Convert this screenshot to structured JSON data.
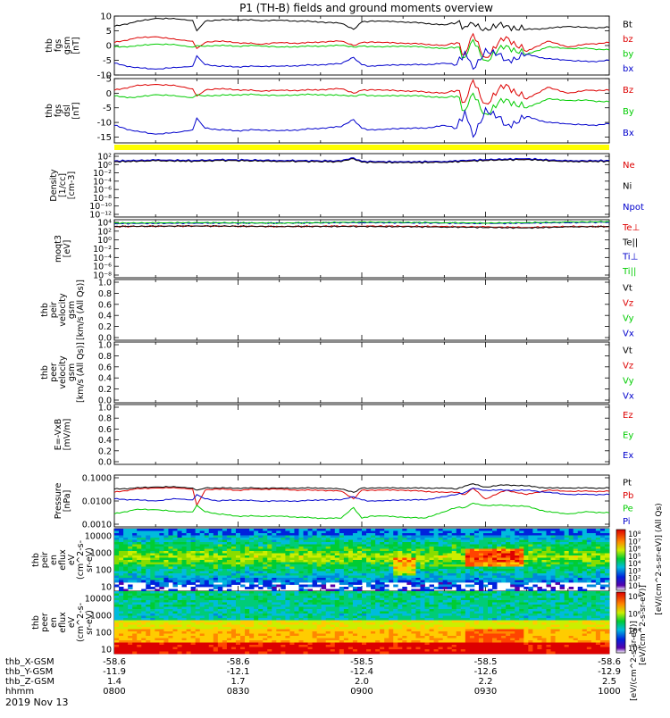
{
  "title": "P1 (TH-B) fields and ground moments overview",
  "date_label": "2019 Nov 13",
  "time_axis": {
    "row_labels": [
      "thb_X-GSM",
      "thb_Y-GSM",
      "thb_Z-GSM",
      "hhmm"
    ],
    "columns": [
      {
        "x": "-58.6",
        "y": "-11.9",
        "z": "1.4",
        "t": "0800"
      },
      {
        "x": "-58.6",
        "y": "-12.1",
        "z": "1.7",
        "t": "0830"
      },
      {
        "x": "-58.5",
        "y": "-12.4",
        "z": "2.0",
        "t": "0900"
      },
      {
        "x": "-58.5",
        "y": "-12.6",
        "z": "2.2",
        "t": "0930"
      },
      {
        "x": "-58.6",
        "y": "-12.9",
        "z": "2.5",
        "t": "1000"
      }
    ]
  },
  "colors": {
    "black": "#000000",
    "red": "#dd0000",
    "green": "#00cc00",
    "blue": "#0000cc",
    "yellow": "#ffff00"
  },
  "colorbar_labels": {
    "ion": "[eV/(cm^2-s-sr-eV)] (All Qs)",
    "electron": "[eV/(cm^2-s-sr-eV)]",
    "bottom": "[eV/(cm^2-s-sr-eV)]"
  },
  "chart_data": [
    {
      "type": "line",
      "name": "fgs-gsm",
      "ylabel": [
        "thb",
        "fgs",
        "gsm",
        "[nT]"
      ],
      "ylim": [
        -10,
        10
      ],
      "yticks": [
        10,
        5,
        0,
        -5,
        -10
      ],
      "legend": [
        {
          "label": "Bt",
          "color": "#000000"
        },
        {
          "label": "bz",
          "color": "#dd0000"
        },
        {
          "label": "by",
          "color": "#00cc00"
        },
        {
          "label": "bx",
          "color": "#0000cc"
        }
      ],
      "x": [
        0,
        5,
        10,
        15,
        19,
        20,
        22,
        25,
        30,
        35,
        40,
        45,
        50,
        55,
        58,
        60,
        62,
        65,
        70,
        75,
        80,
        83,
        85,
        87,
        90,
        95,
        100,
        105,
        110,
        115,
        120
      ],
      "series": [
        {
          "name": "Bt",
          "color": "#000000",
          "values": [
            6.5,
            8.0,
            9.2,
            9.0,
            8.5,
            5.0,
            8.2,
            8.6,
            8.8,
            8.5,
            8.6,
            8.3,
            8.0,
            7.5,
            5.5,
            8.0,
            8.3,
            8.2,
            8.0,
            7.6,
            7.0,
            7.8,
            6.5,
            7.5,
            6.0,
            6.8,
            5.5,
            5.8,
            6.5,
            6.0,
            6.2
          ]
        },
        {
          "name": "bz",
          "color": "#dd0000",
          "values": [
            1.0,
            2.5,
            3.0,
            2.0,
            1.5,
            -1.0,
            1.0,
            1.5,
            1.0,
            0.5,
            1.0,
            0.8,
            1.2,
            1.5,
            0.0,
            1.0,
            1.2,
            1.0,
            0.8,
            0.5,
            0.0,
            1.0,
            -3.0,
            4.0,
            -4.0,
            3.0,
            -2.0,
            1.5,
            -0.5,
            0.5,
            1.0
          ]
        },
        {
          "name": "by",
          "color": "#00cc00",
          "values": [
            -0.5,
            -0.2,
            0.5,
            0.2,
            -0.5,
            0.0,
            -0.3,
            0.0,
            -0.2,
            0.0,
            -0.5,
            -0.3,
            -0.2,
            0.0,
            -0.5,
            -0.2,
            -0.3,
            -0.5,
            -0.2,
            -0.5,
            -1.0,
            -0.5,
            -4.0,
            2.0,
            -5.0,
            0.0,
            -3.0,
            -0.5,
            -1.0,
            -1.0,
            -1.5
          ]
        },
        {
          "name": "bx",
          "color": "#0000cc",
          "values": [
            -6.0,
            -7.5,
            -8.0,
            -7.5,
            -7.0,
            -3.5,
            -6.5,
            -7.0,
            -7.2,
            -7.0,
            -7.0,
            -6.8,
            -6.5,
            -6.2,
            -4.0,
            -6.5,
            -7.0,
            -6.8,
            -6.5,
            -6.5,
            -6.0,
            -6.5,
            -2.0,
            -8.0,
            -1.0,
            -5.0,
            -3.0,
            -4.5,
            -5.0,
            -5.5,
            -5.0
          ]
        }
      ]
    },
    {
      "type": "line",
      "name": "fgs-dsl",
      "ylabel": [
        "thb",
        "fgs",
        "dsl",
        "[nT]"
      ],
      "ylim": [
        -17,
        5
      ],
      "yticks": [
        5,
        0,
        -5,
        -10,
        -15
      ],
      "legend": [
        {
          "label": "Bz",
          "color": "#dd0000"
        },
        {
          "label": "By",
          "color": "#00cc00"
        },
        {
          "label": "Bx",
          "color": "#0000cc"
        }
      ],
      "x": [
        0,
        5,
        10,
        15,
        19,
        20,
        22,
        25,
        30,
        35,
        40,
        45,
        50,
        55,
        58,
        60,
        62,
        65,
        70,
        75,
        80,
        83,
        85,
        87,
        90,
        95,
        100,
        105,
        110,
        115,
        120
      ],
      "series": [
        {
          "name": "Bz",
          "color": "#dd0000",
          "values": [
            1.0,
            2.5,
            3.0,
            2.5,
            1.5,
            -1.0,
            1.0,
            1.5,
            1.2,
            0.8,
            1.0,
            1.0,
            1.2,
            1.5,
            0.0,
            1.0,
            1.2,
            1.0,
            0.8,
            0.5,
            0.0,
            1.0,
            -3.0,
            4.5,
            -3.5,
            3.0,
            -2.0,
            2.0,
            0.0,
            1.0,
            1.0
          ]
        },
        {
          "name": "By",
          "color": "#00cc00",
          "values": [
            -1.0,
            -1.5,
            -0.5,
            -1.0,
            -1.5,
            -0.5,
            -1.0,
            -0.8,
            -0.5,
            -0.5,
            -0.8,
            -0.5,
            -0.5,
            -0.8,
            -1.0,
            -0.5,
            -0.8,
            -1.0,
            -0.8,
            -1.0,
            -1.5,
            -1.0,
            -6.0,
            0.0,
            -7.0,
            -2.0,
            -5.0,
            -2.0,
            -2.5,
            -2.5,
            -3.0
          ]
        },
        {
          "name": "Bx",
          "color": "#0000cc",
          "values": [
            -11.0,
            -13.0,
            -14.0,
            -13.5,
            -12.5,
            -8.5,
            -12.0,
            -12.5,
            -12.8,
            -12.5,
            -12.8,
            -12.5,
            -12.0,
            -11.5,
            -9.0,
            -12.0,
            -12.5,
            -12.5,
            -12.0,
            -12.0,
            -11.0,
            -12.0,
            -6.0,
            -15.0,
            -5.0,
            -11.0,
            -8.0,
            -10.0,
            -10.5,
            -11.0,
            -10.5
          ]
        }
      ]
    },
    {
      "type": "line",
      "name": "density",
      "ylabel": [
        "Density",
        "[1/cc]",
        "[cm-3]"
      ],
      "ylim": [
        -12,
        2
      ],
      "ylog": true,
      "yticks": [
        "10²",
        "10⁰",
        "10⁻²",
        "10⁻⁴",
        "10⁻⁶",
        "10⁻⁸",
        "10⁻¹⁰",
        "10⁻¹²"
      ],
      "legend": [
        {
          "label": "Ne",
          "color": "#dd0000"
        },
        {
          "label": "Ni",
          "color": "#000000"
        },
        {
          "label": "Npot",
          "color": "#0000cc"
        }
      ],
      "x": [
        0,
        10,
        20,
        25,
        40,
        55,
        58,
        60,
        70,
        80,
        90,
        100,
        110,
        120
      ],
      "series": [
        {
          "name": "Ne",
          "color": "#dd0000",
          "values": [
            0.3,
            0.5,
            0.4,
            0.6,
            0.4,
            0.3,
            1.0,
            0.2,
            0.1,
            0.2,
            0.6,
            0.8,
            0.3,
            0.4
          ]
        },
        {
          "name": "Ni",
          "color": "#000000",
          "values": [
            0.2,
            0.4,
            0.3,
            0.5,
            0.3,
            0.2,
            0.9,
            0.1,
            0.0,
            0.1,
            0.5,
            0.7,
            0.2,
            0.3
          ]
        },
        {
          "name": "Npot",
          "color": "#0000cc",
          "values": [
            0.4,
            0.6,
            0.5,
            0.7,
            0.5,
            0.4,
            1.1,
            0.3,
            0.2,
            0.3,
            0.7,
            0.9,
            0.4,
            0.5
          ]
        }
      ]
    },
    {
      "type": "line",
      "name": "temperature",
      "ylabel": [
        "moqt3",
        "[eV]"
      ],
      "ylim": [
        -8,
        4
      ],
      "ylog": true,
      "yticks": [
        "10⁴",
        "10²",
        "10⁰",
        "10⁻²",
        "10⁻⁴",
        "10⁻⁶",
        "10⁻⁸"
      ],
      "legend": [
        {
          "label": "Te⊥",
          "color": "#dd0000"
        },
        {
          "label": "Te||",
          "color": "#000000"
        },
        {
          "label": "Ti⊥",
          "color": "#0000cc"
        },
        {
          "label": "Ti||",
          "color": "#00cc00"
        }
      ],
      "x": [
        0,
        20,
        40,
        60,
        80,
        90,
        100,
        110,
        120
      ],
      "series": [
        {
          "name": "Te⊥",
          "color": "#dd0000",
          "values": [
            2.6,
            2.7,
            2.6,
            2.7,
            2.6,
            2.5,
            2.4,
            2.6,
            2.6
          ]
        },
        {
          "name": "Te||",
          "color": "#000000",
          "values": [
            2.6,
            2.7,
            2.6,
            2.6,
            2.5,
            2.4,
            2.3,
            2.5,
            2.6
          ]
        },
        {
          "name": "Ti⊥",
          "color": "#0000cc",
          "values": [
            3.2,
            3.3,
            3.3,
            3.4,
            3.3,
            3.2,
            3.3,
            3.4,
            3.5
          ]
        },
        {
          "name": "Ti||",
          "color": "#00cc00",
          "values": [
            3.3,
            3.4,
            3.3,
            3.5,
            3.4,
            3.3,
            3.4,
            3.5,
            3.6
          ]
        }
      ]
    },
    {
      "type": "line",
      "name": "peir-velocity",
      "ylabel": [
        "thb",
        "peir",
        "velocity",
        "gsm",
        "[km/s (All Qs)]"
      ],
      "ylim": [
        0,
        1
      ],
      "yticks": [
        "1.0",
        "0.8",
        "0.6",
        "0.4",
        "0.2",
        "0.0"
      ],
      "legend": [
        {
          "label": "Vt",
          "color": "#000000"
        },
        {
          "label": "Vz",
          "color": "#dd0000"
        },
        {
          "label": "Vy",
          "color": "#00cc00"
        },
        {
          "label": "Vx",
          "color": "#0000cc"
        }
      ],
      "series": []
    },
    {
      "type": "line",
      "name": "peer-velocity",
      "ylabel": [
        "thb",
        "peer",
        "velocity",
        "gsm",
        "[km/s (All Qs)]"
      ],
      "ylim": [
        0,
        1
      ],
      "yticks": [
        "1.0",
        "0.8",
        "0.6",
        "0.4",
        "0.2",
        "0.0"
      ],
      "legend": [
        {
          "label": "Vt",
          "color": "#000000"
        },
        {
          "label": "Vz",
          "color": "#dd0000"
        },
        {
          "label": "Vy",
          "color": "#00cc00"
        },
        {
          "label": "Vx",
          "color": "#0000cc"
        }
      ],
      "series": []
    },
    {
      "type": "line",
      "name": "efield",
      "ylabel": [
        "E=-VxB",
        "[mV/m]"
      ],
      "ylim": [
        0,
        1
      ],
      "yticks": [
        "1.0",
        "0.8",
        "0.6",
        "0.4",
        "0.2",
        "0.0"
      ],
      "legend": [
        {
          "label": "Ez",
          "color": "#dd0000"
        },
        {
          "label": "Ey",
          "color": "#00cc00"
        },
        {
          "label": "Ex",
          "color": "#0000cc"
        }
      ],
      "series": []
    },
    {
      "type": "line",
      "name": "pressure",
      "ylabel": [
        "Pressure",
        "[nPa]"
      ],
      "ylim": [
        -3.3,
        -0.9
      ],
      "ylog": true,
      "yticks": [
        "0.1000",
        "0.0100",
        "0.0010"
      ],
      "legend": [
        {
          "label": "Pt",
          "color": "#000000"
        },
        {
          "label": "Pb",
          "color": "#dd0000"
        },
        {
          "label": "Pe",
          "color": "#00cc00"
        },
        {
          "label": "Pi",
          "color": "#0000cc"
        }
      ],
      "x": [
        0,
        5,
        10,
        15,
        19,
        20,
        22,
        25,
        30,
        35,
        40,
        45,
        50,
        55,
        58,
        60,
        62,
        65,
        70,
        75,
        80,
        83,
        85,
        87,
        90,
        95,
        100,
        105,
        110,
        115,
        120
      ],
      "series": [
        {
          "name": "Pt",
          "color": "#000000",
          "values": [
            -1.55,
            -1.5,
            -1.45,
            -1.45,
            -1.5,
            -1.6,
            -1.5,
            -1.5,
            -1.5,
            -1.5,
            -1.5,
            -1.5,
            -1.5,
            -1.55,
            -1.7,
            -1.5,
            -1.5,
            -1.5,
            -1.5,
            -1.5,
            -1.5,
            -1.55,
            -1.4,
            -1.3,
            -1.45,
            -1.35,
            -1.4,
            -1.5,
            -1.5,
            -1.5,
            -1.5
          ]
        },
        {
          "name": "Pb",
          "color": "#dd0000",
          "values": [
            -1.7,
            -1.55,
            -1.5,
            -1.5,
            -1.55,
            -2.3,
            -1.6,
            -1.55,
            -1.6,
            -1.55,
            -1.55,
            -1.6,
            -1.6,
            -1.65,
            -2.0,
            -1.6,
            -1.6,
            -1.6,
            -1.6,
            -1.65,
            -1.7,
            -1.7,
            -1.8,
            -1.5,
            -2.0,
            -1.6,
            -1.8,
            -1.6,
            -1.65,
            -1.65,
            -1.65
          ]
        },
        {
          "name": "Pe",
          "color": "#00cc00",
          "values": [
            -2.7,
            -2.5,
            -2.5,
            -2.6,
            -2.6,
            -2.3,
            -2.6,
            -2.7,
            -2.8,
            -2.8,
            -2.8,
            -2.85,
            -2.9,
            -2.9,
            -2.4,
            -2.9,
            -2.8,
            -2.8,
            -2.85,
            -2.9,
            -2.6,
            -2.4,
            -2.4,
            -2.2,
            -2.3,
            -2.3,
            -2.35,
            -2.6,
            -2.7,
            -2.6,
            -2.65
          ]
        },
        {
          "name": "Pi",
          "color": "#0000cc",
          "values": [
            -2.0,
            -2.05,
            -2.1,
            -2.0,
            -2.05,
            -1.8,
            -2.0,
            -2.1,
            -2.05,
            -2.1,
            -2.1,
            -2.1,
            -2.05,
            -2.05,
            -1.9,
            -2.05,
            -2.1,
            -2.1,
            -2.05,
            -2.05,
            -1.9,
            -1.8,
            -1.7,
            -1.5,
            -1.6,
            -1.6,
            -1.6,
            -1.7,
            -1.8,
            -1.8,
            -1.8
          ]
        }
      ]
    },
    {
      "type": "heatmap",
      "name": "peir-eflux",
      "ylabel": [
        "thb",
        "peir",
        "en",
        "eflux",
        "eV",
        "(cm^2-s-",
        "sr-eV)"
      ],
      "ylog": true,
      "yticks": [
        "10000",
        "1000",
        "100",
        "10"
      ],
      "colorbar_ticks": [
        "10⁸",
        "10⁷",
        "10⁶",
        "10⁵",
        "10⁴",
        "10³",
        "10²",
        "10¹"
      ]
    },
    {
      "type": "heatmap",
      "name": "peer-eflux",
      "ylabel": [
        "thb",
        "peer",
        "en",
        "eflux",
        "eV",
        "(cm^2-s-",
        "sr-eV)"
      ],
      "ylog": true,
      "yticks": [
        "10000",
        "1000",
        "100",
        "10"
      ],
      "colorbar_ticks": [
        "10⁸",
        "10⁶",
        "10⁴",
        "10²"
      ]
    }
  ]
}
